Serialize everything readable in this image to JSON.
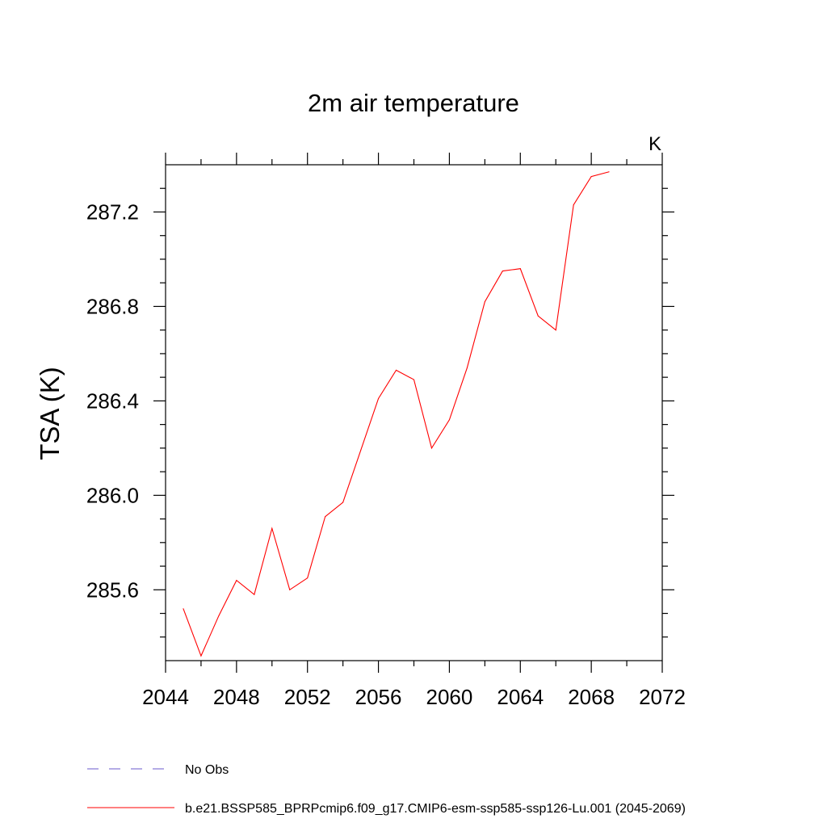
{
  "chart_data": {
    "type": "line",
    "title": "2m air temperature",
    "units_label": "K",
    "xlabel": "",
    "ylabel": "TSA  (K)",
    "xlim": [
      2044,
      2072
    ],
    "ylim": [
      285.3,
      287.4
    ],
    "x_ticks": [
      2044,
      2048,
      2052,
      2056,
      2060,
      2064,
      2068,
      2072
    ],
    "x_tick_labels": [
      "2044",
      "2048",
      "2052",
      "2056",
      "2060",
      "2064",
      "2068",
      "2072"
    ],
    "y_ticks": [
      285.6,
      286.0,
      286.4,
      286.8,
      287.2
    ],
    "y_tick_labels": [
      "285.6",
      "286.0",
      "286.4",
      "286.8",
      "287.2"
    ],
    "grid": false,
    "legend_position": "bottom",
    "series": [
      {
        "name": "b.e21.BSSP585_BPRPcmip6.f09_g17.CMIP6-esm-ssp585-ssp126-Lu.001 (2045-2069)",
        "color": "#ff0000",
        "style": "solid",
        "x": [
          2045,
          2046,
          2047,
          2048,
          2049,
          2050,
          2051,
          2052,
          2053,
          2054,
          2055,
          2056,
          2057,
          2058,
          2059,
          2060,
          2061,
          2062,
          2063,
          2064,
          2065,
          2066,
          2067,
          2068,
          2069
        ],
        "y": [
          285.52,
          285.32,
          285.49,
          285.64,
          285.58,
          285.86,
          285.6,
          285.65,
          285.91,
          285.97,
          286.19,
          286.41,
          286.53,
          286.49,
          286.2,
          286.32,
          286.54,
          286.82,
          286.95,
          286.96,
          286.76,
          286.7,
          287.23,
          287.35,
          287.37
        ]
      }
    ],
    "legend": [
      {
        "label": "No Obs",
        "color": "#6a5acd",
        "style": "dashed"
      },
      {
        "label": "b.e21.BSSP585_BPRPcmip6.f09_g17.CMIP6-esm-ssp585-ssp126-Lu.001 (2045-2069)",
        "color": "#ff0000",
        "style": "solid"
      }
    ]
  }
}
